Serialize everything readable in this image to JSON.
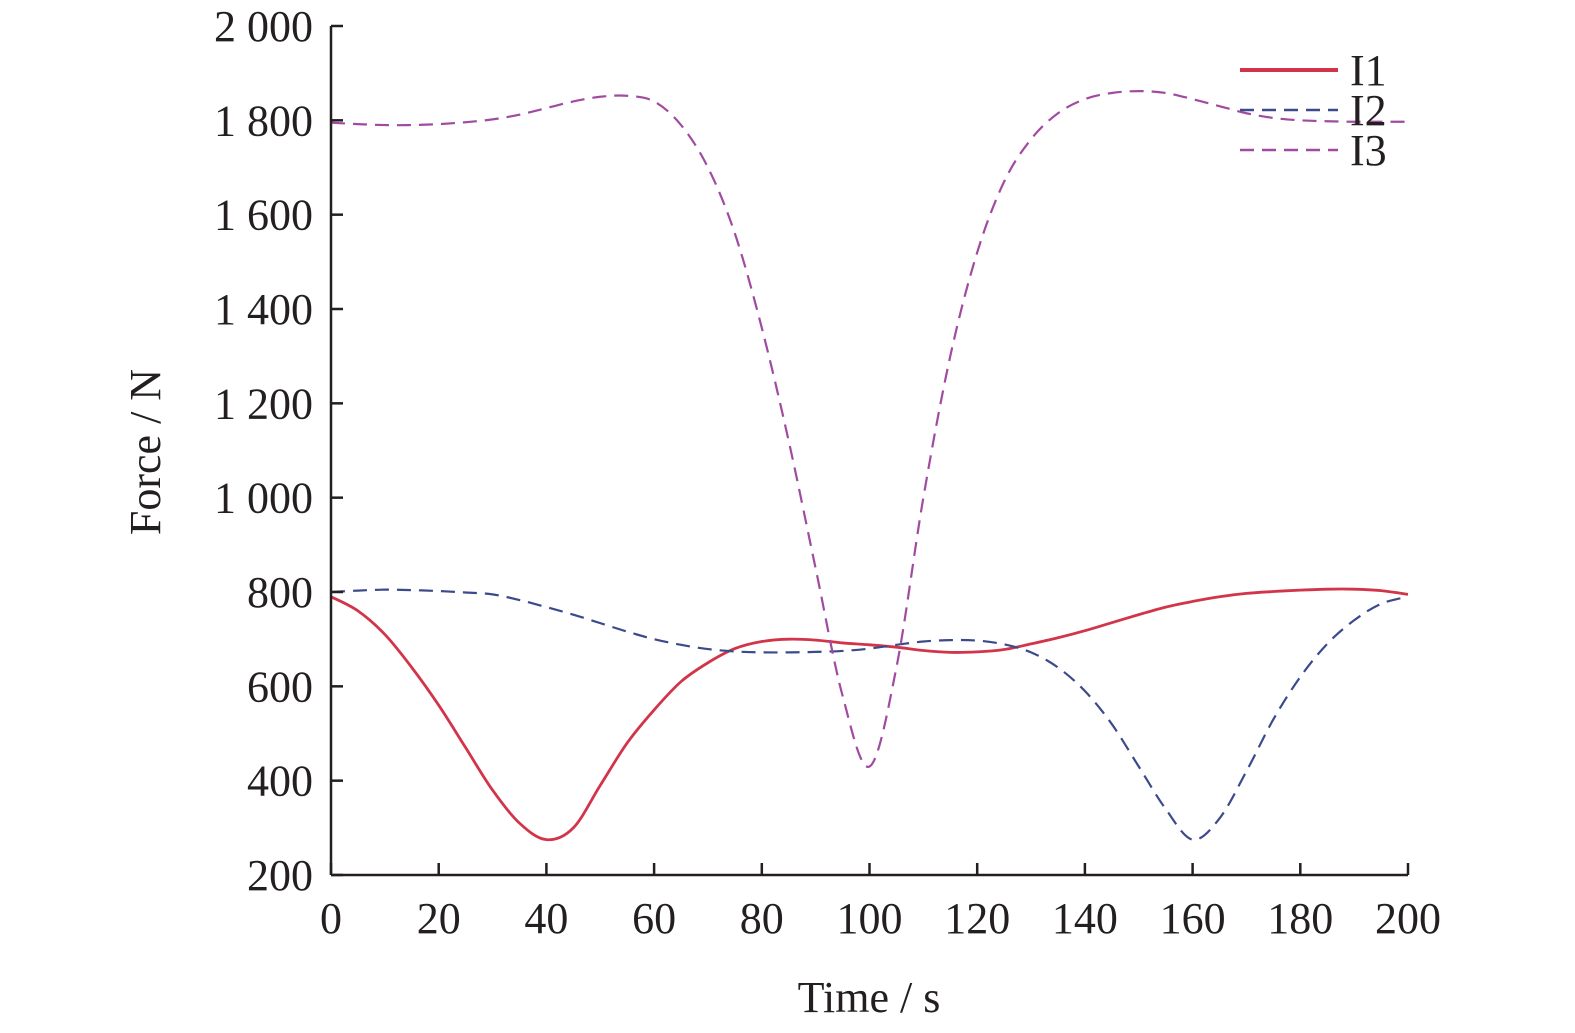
{
  "chart_data": {
    "type": "line",
    "xlabel": "Time / s",
    "ylabel": "Force / N",
    "xlim": [
      0,
      200
    ],
    "ylim": [
      200,
      2000
    ],
    "xticks": [
      0,
      20,
      40,
      60,
      80,
      100,
      120,
      140,
      160,
      180,
      200
    ],
    "yticks": [
      200,
      400,
      600,
      800,
      1000,
      1200,
      1400,
      1600,
      1800,
      2000
    ],
    "xtick_labels": [
      "0",
      "20",
      "40",
      "60",
      "80",
      "100",
      "120",
      "140",
      "160",
      "180",
      "200"
    ],
    "ytick_labels": [
      "200",
      "400",
      "600",
      "800",
      "1 000",
      "1 200",
      "1 400",
      "1 600",
      "1 800",
      "2 000"
    ],
    "grid": false,
    "legend_position": "top-right",
    "series": [
      {
        "name": "I1",
        "color": "#d2344a",
        "style": "solid",
        "x": [
          0,
          5,
          10,
          15,
          20,
          25,
          30,
          35,
          40,
          45,
          50,
          55,
          60,
          65,
          70,
          75,
          80,
          85,
          90,
          95,
          100,
          105,
          110,
          115,
          120,
          125,
          130,
          135,
          140,
          145,
          150,
          155,
          160,
          165,
          170,
          175,
          180,
          185,
          190,
          195,
          200
        ],
        "y": [
          790,
          760,
          710,
          640,
          560,
          470,
          380,
          310,
          275,
          300,
          390,
          480,
          550,
          610,
          650,
          680,
          695,
          700,
          698,
          692,
          688,
          683,
          676,
          672,
          673,
          678,
          690,
          703,
          718,
          735,
          752,
          768,
          780,
          790,
          797,
          801,
          804,
          806,
          806,
          803,
          795
        ]
      },
      {
        "name": "I2",
        "color": "#3c4a8c",
        "style": "dashed",
        "x": [
          0,
          5,
          10,
          15,
          20,
          25,
          30,
          35,
          40,
          45,
          50,
          55,
          60,
          65,
          70,
          75,
          80,
          85,
          90,
          95,
          100,
          105,
          110,
          115,
          120,
          125,
          130,
          135,
          140,
          145,
          150,
          155,
          160,
          165,
          170,
          175,
          180,
          185,
          190,
          195,
          200
        ],
        "y": [
          800,
          803,
          805,
          804,
          802,
          799,
          795,
          783,
          768,
          752,
          734,
          716,
          700,
          688,
          679,
          674,
          672,
          672,
          673,
          675,
          680,
          688,
          695,
          698,
          697,
          689,
          672,
          640,
          590,
          520,
          430,
          340,
          275,
          320,
          420,
          530,
          620,
          690,
          740,
          775,
          790
        ]
      },
      {
        "name": "I3",
        "color": "#a04ba0",
        "style": "dashed",
        "x": [
          0,
          5,
          10,
          15,
          20,
          25,
          30,
          35,
          40,
          45,
          50,
          55,
          60,
          65,
          70,
          75,
          80,
          85,
          90,
          95,
          100,
          105,
          110,
          115,
          120,
          125,
          130,
          135,
          140,
          145,
          150,
          155,
          160,
          165,
          170,
          175,
          180,
          185,
          190,
          195,
          200
        ],
        "y": [
          1795,
          1792,
          1790,
          1790,
          1792,
          1796,
          1802,
          1812,
          1826,
          1840,
          1850,
          1852,
          1840,
          1790,
          1700,
          1560,
          1360,
          1120,
          850,
          580,
          430,
          640,
          1000,
          1300,
          1520,
          1670,
          1760,
          1815,
          1845,
          1858,
          1862,
          1858,
          1845,
          1830,
          1815,
          1805,
          1800,
          1798,
          1797,
          1797,
          1797
        ]
      }
    ]
  }
}
